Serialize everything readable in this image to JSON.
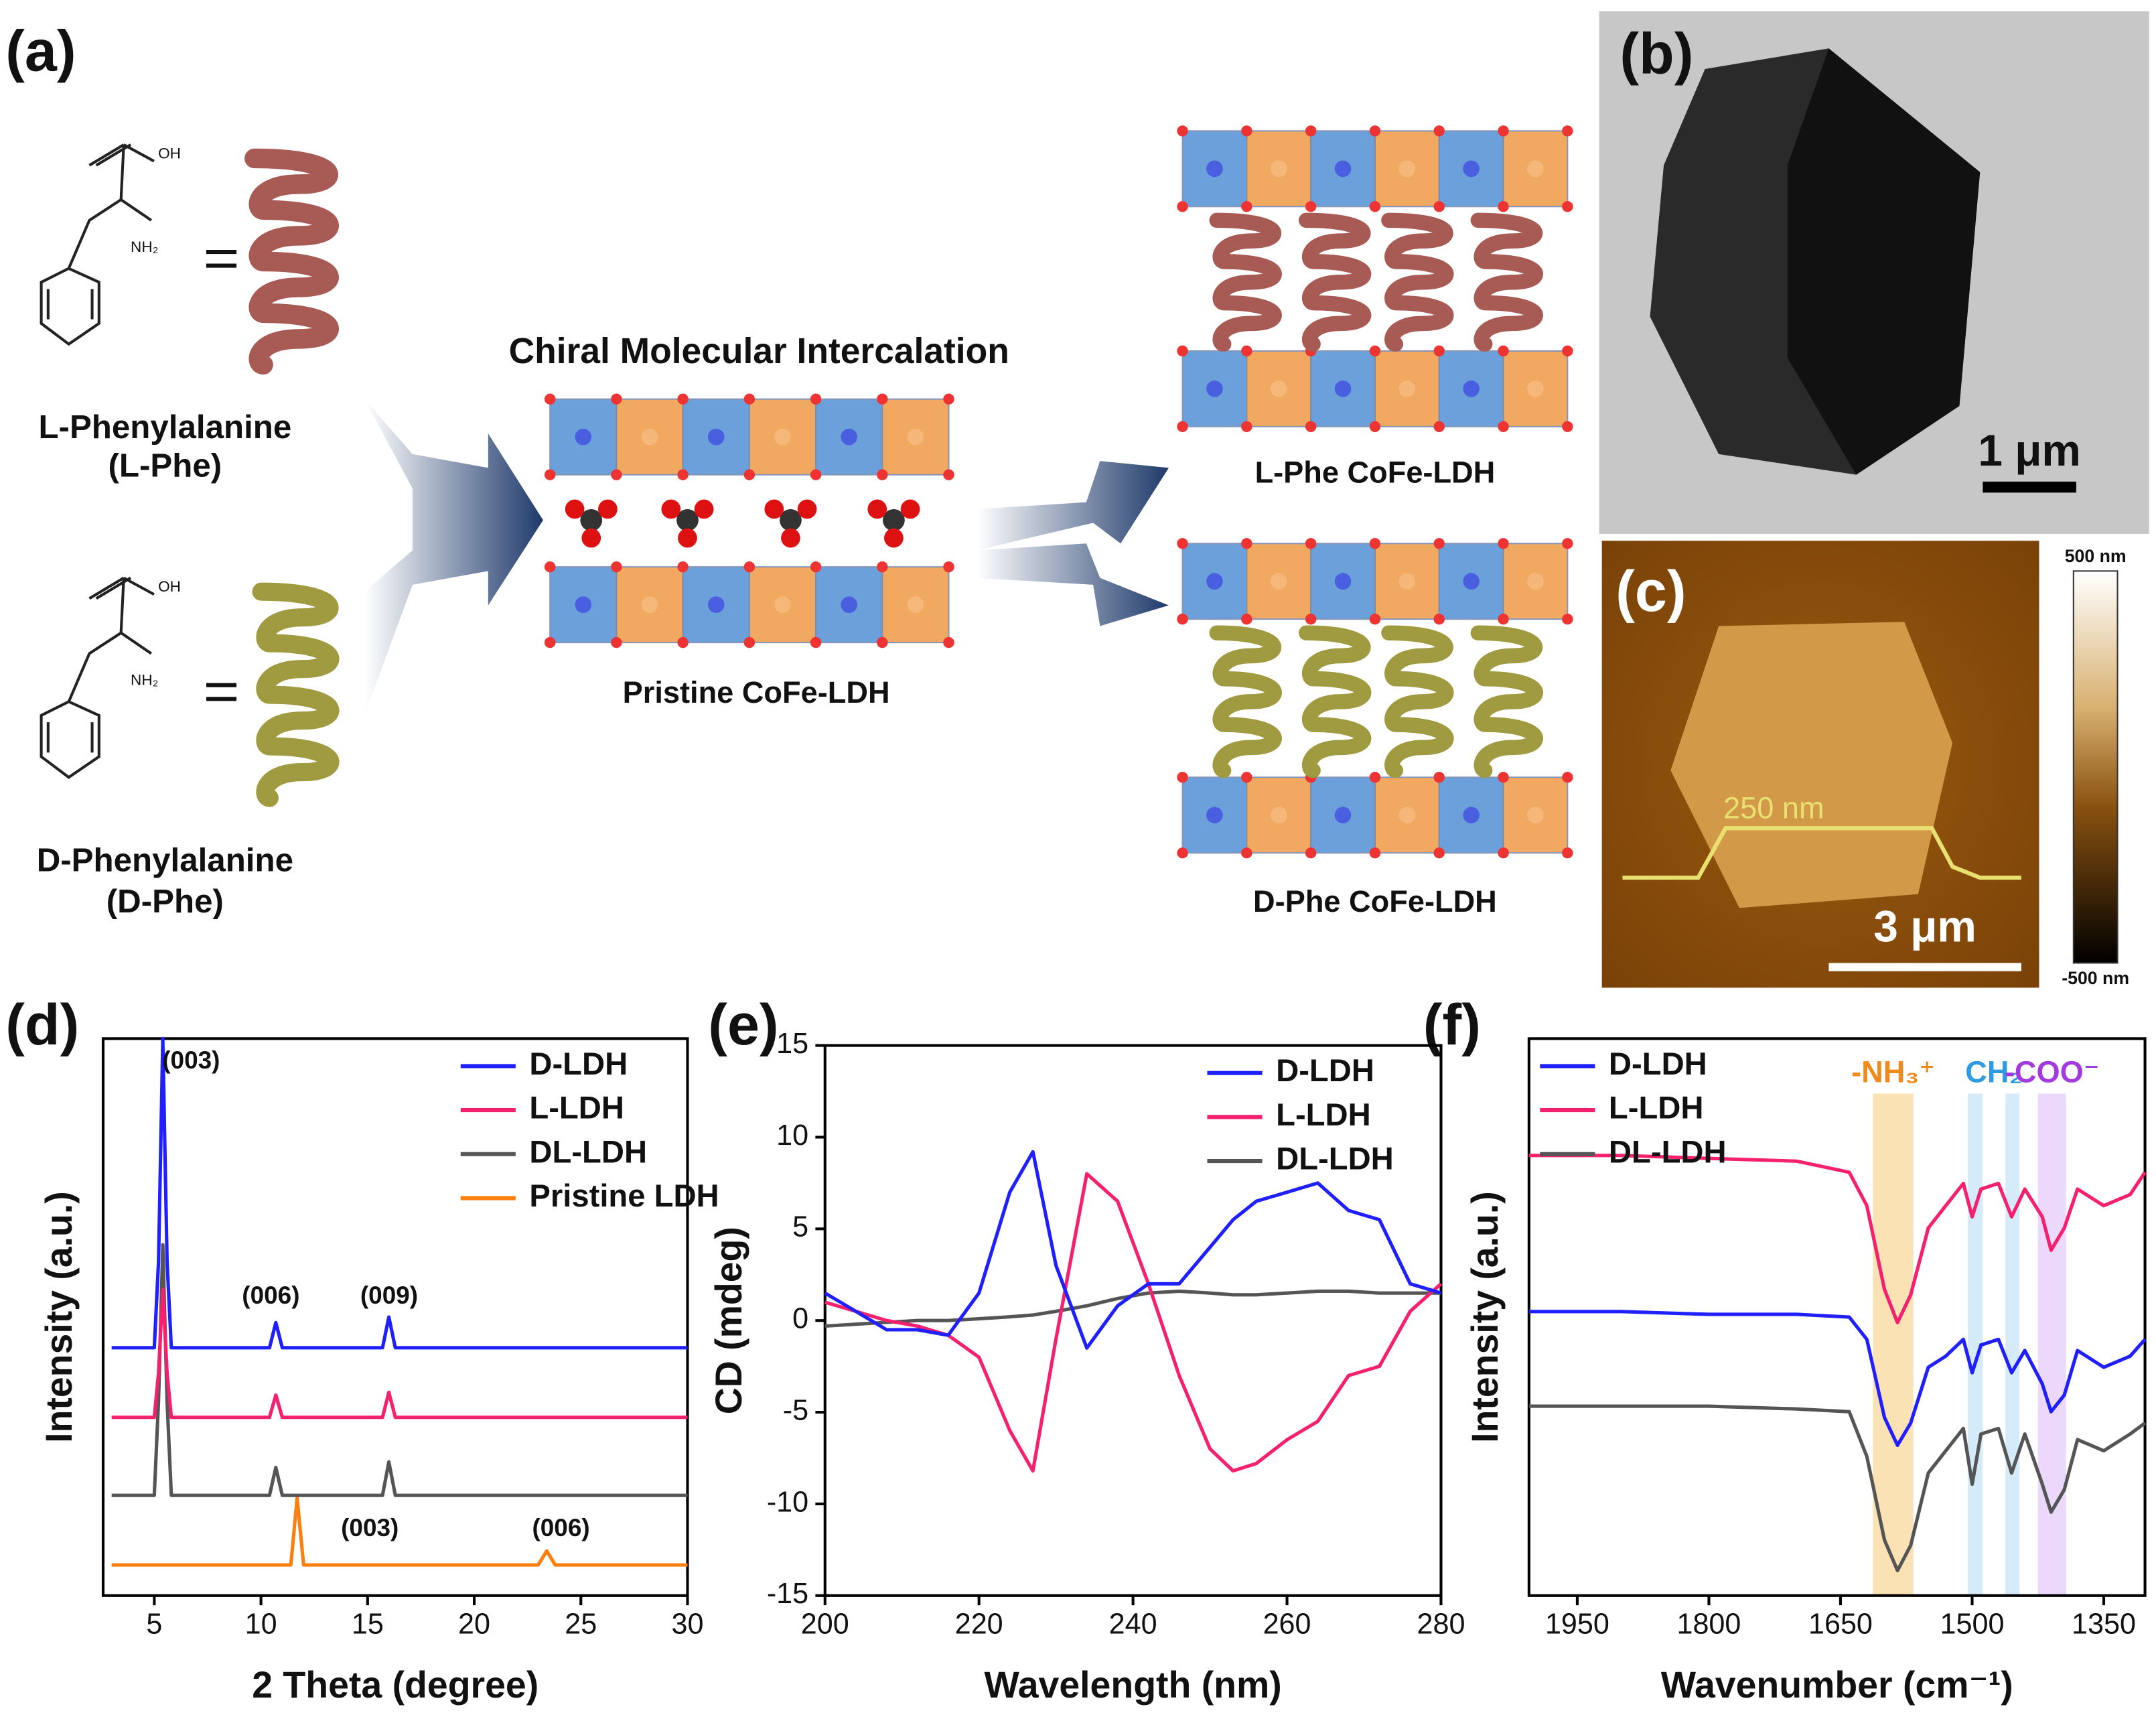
{
  "panel_labels": [
    "(a)",
    "(b)",
    "(c)",
    "(d)",
    "(e)",
    "(f)"
  ],
  "scheme": {
    "molecules": [
      {
        "name": "L-Phenylalanine",
        "abbr": "(L-Phe)"
      },
      {
        "name": "D-Phenylalanine",
        "abbr": "(D-Phe)"
      }
    ],
    "chem_labels": [
      "OH",
      "NH₂"
    ],
    "process": "Chiral Molecular Intercalation",
    "pristine": "Pristine CoFe-LDH",
    "products": [
      "L-Phe CoFe-LDH",
      "D-Phe CoFe-LDH"
    ]
  },
  "tem": {
    "scale_bar": "1 μm"
  },
  "afm": {
    "profile_label": "250 nm",
    "scale_bar": "3 μm",
    "colorbar_max": "500 nm",
    "colorbar_min": "-500 nm"
  },
  "chart_data": [
    {
      "type": "line",
      "xlabel": "2 Theta (degree)",
      "ylabel": "Intensity (a.u.)",
      "x": [
        3,
        5,
        5.2,
        5.4,
        5.6,
        5.8,
        8,
        10.4,
        10.7,
        11,
        11.4,
        11.7,
        12,
        15.7,
        16,
        16.3,
        20,
        23,
        23.4,
        23.8,
        27,
        30
      ],
      "xlim": [
        2.6,
        30
      ],
      "xticks": [
        5,
        10,
        15,
        20,
        25,
        30
      ],
      "ylim": [
        0,
        10
      ],
      "legend": "upper right",
      "series": [
        {
          "name": "D-LDH",
          "color": "#1f1fff",
          "values": [
            4.45,
            4.45,
            6,
            10,
            6,
            4.45,
            4.45,
            4.45,
            4.9,
            4.45,
            4.45,
            4.45,
            4.45,
            4.45,
            5.0,
            4.45,
            4.45,
            4.45,
            4.45,
            4.45,
            4.45,
            4.45
          ]
        },
        {
          "name": "L-LDH",
          "color": "#f5206e",
          "values": [
            3.2,
            3.2,
            4,
            5.5,
            4,
            3.2,
            3.2,
            3.2,
            3.6,
            3.2,
            3.2,
            3.2,
            3.2,
            3.2,
            3.65,
            3.2,
            3.2,
            3.2,
            3.2,
            3.2,
            3.2,
            3.2
          ]
        },
        {
          "name": "DL-LDH",
          "color": "#555555",
          "values": [
            1.8,
            1.8,
            3.5,
            6.3,
            3.5,
            1.8,
            1.8,
            1.8,
            2.3,
            1.8,
            1.8,
            1.8,
            1.8,
            1.8,
            2.4,
            1.8,
            1.8,
            1.8,
            1.8,
            1.8,
            1.8,
            1.8
          ]
        },
        {
          "name": "Pristine LDH",
          "color": "#ff7f0e",
          "values": [
            0.55,
            0.55,
            0.55,
            0.55,
            0.55,
            0.55,
            0.55,
            0.55,
            0.55,
            0.55,
            0.55,
            1.75,
            0.55,
            0.55,
            0.55,
            0.55,
            0.55,
            0.55,
            0.8,
            0.55,
            0.55,
            0.55
          ]
        }
      ],
      "annotations": [
        "(003)",
        "(006)",
        "(009)",
        "(003)",
        "(006)"
      ]
    },
    {
      "type": "line",
      "xlabel": "Wavelength (nm)",
      "ylabel": "CD (mdeg)",
      "x": [
        200,
        204,
        208,
        212,
        216,
        220,
        224,
        227,
        230,
        234,
        238,
        242,
        246,
        250,
        253,
        256,
        260,
        264,
        268,
        272,
        276,
        280
      ],
      "xlim": [
        200,
        280
      ],
      "xticks": [
        200,
        220,
        240,
        260,
        280
      ],
      "ylim": [
        -15,
        15
      ],
      "yticks": [
        -15,
        -10,
        -5,
        0,
        5,
        10,
        15
      ],
      "legend": "upper right",
      "series": [
        {
          "name": "D-LDH",
          "color": "#1f1fff",
          "values": [
            1.5,
            0.5,
            -0.5,
            -0.5,
            -0.8,
            1.5,
            7,
            9.2,
            3,
            -1.5,
            0.8,
            2,
            2,
            4,
            5.5,
            6.5,
            7,
            7.5,
            6,
            5.5,
            2,
            1.5
          ]
        },
        {
          "name": "L-LDH",
          "color": "#f5206e",
          "values": [
            1,
            0.5,
            0,
            -0.3,
            -0.8,
            -2,
            -6,
            -8.2,
            -1,
            8,
            6.5,
            2,
            -3,
            -7,
            -8.2,
            -7.8,
            -6.5,
            -5.5,
            -3,
            -2.5,
            0.5,
            2
          ]
        },
        {
          "name": "DL-LDH",
          "color": "#555555",
          "values": [
            -0.3,
            -0.2,
            -0.1,
            0,
            0,
            0.1,
            0.2,
            0.3,
            0.5,
            0.8,
            1.2,
            1.5,
            1.6,
            1.5,
            1.4,
            1.4,
            1.5,
            1.6,
            1.6,
            1.5,
            1.5,
            1.5
          ]
        }
      ]
    },
    {
      "type": "line",
      "xlabel": "Wavenumber (cm⁻¹)",
      "ylabel": "Intensity (a.u.)",
      "x": [
        2005,
        1900,
        1800,
        1700,
        1640,
        1620,
        1600,
        1585,
        1570,
        1550,
        1530,
        1510,
        1500,
        1490,
        1470,
        1455,
        1440,
        1420,
        1410,
        1395,
        1380,
        1350,
        1320,
        1303
      ],
      "xlim": [
        2005,
        1303
      ],
      "xticks": [
        1950,
        1800,
        1650,
        1500,
        1350
      ],
      "ylim": [
        0,
        10
      ],
      "legend": "upper left",
      "series": [
        {
          "name": "D-LDH",
          "color": "#1f1fff",
          "values": [
            5.1,
            5.1,
            5.05,
            5.05,
            5.0,
            4.6,
            3.2,
            2.7,
            3.1,
            4.1,
            4.3,
            4.6,
            4.0,
            4.5,
            4.6,
            4.0,
            4.4,
            3.8,
            3.3,
            3.6,
            4.4,
            4.1,
            4.3,
            4.6
          ]
        },
        {
          "name": "L-LDH",
          "color": "#f5206e",
          "values": [
            7.9,
            7.9,
            7.85,
            7.8,
            7.6,
            7.0,
            5.5,
            4.9,
            5.4,
            6.6,
            7.0,
            7.4,
            6.8,
            7.3,
            7.4,
            6.8,
            7.3,
            6.8,
            6.2,
            6.6,
            7.3,
            7.0,
            7.2,
            7.6
          ]
        },
        {
          "name": "DL-LDH",
          "color": "#555555",
          "values": [
            3.4,
            3.4,
            3.4,
            3.35,
            3.3,
            2.5,
            1.0,
            0.45,
            0.9,
            2.2,
            2.6,
            3.0,
            2.0,
            2.9,
            3.0,
            2.2,
            2.9,
            2.0,
            1.5,
            1.9,
            2.8,
            2.6,
            2.9,
            3.1
          ]
        }
      ],
      "bands": [
        {
          "label": "-NH₃⁺",
          "color": "#f08a1a",
          "fill": "#fbe2b4",
          "ranges": [
            [
              1613,
              1567
            ]
          ]
        },
        {
          "label": "CH₂",
          "color": "#2f9be0",
          "fill": "#d5ebfa",
          "ranges": [
            [
              1505,
              1488
            ],
            [
              1462,
              1446
            ]
          ]
        },
        {
          "label": "-COO⁻",
          "color": "#a33ae0",
          "fill": "#ecd8fb",
          "ranges": [
            [
              1425,
              1393
            ]
          ]
        }
      ]
    }
  ]
}
